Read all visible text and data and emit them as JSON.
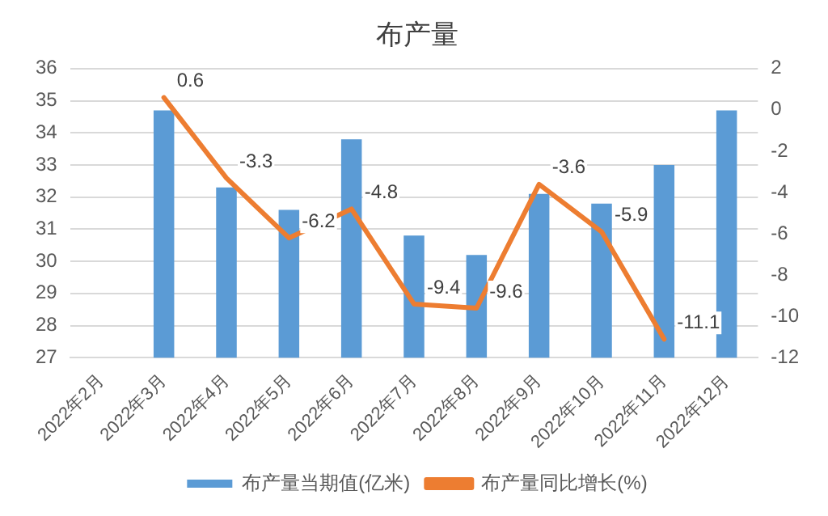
{
  "chart_data": {
    "type": "bar",
    "title": "布产量",
    "categories": [
      "2022年2月",
      "2022年3月",
      "2022年4月",
      "2022年5月",
      "2022年6月",
      "2022年7月",
      "2022年8月",
      "2022年9月",
      "2022年10月",
      "2022年11月",
      "2022年12月"
    ],
    "series": [
      {
        "name": "布产量当期值(亿米)",
        "color": "#5b9bd5",
        "values": [
          null,
          34.7,
          32.3,
          31.6,
          33.8,
          30.8,
          30.2,
          32.1,
          31.8,
          33.0,
          34.7
        ]
      },
      {
        "name": "布产量同比增长(%)",
        "type": "line",
        "axis": "y2",
        "color": "#ed7d31",
        "values": [
          null,
          0.6,
          -3.3,
          -6.2,
          -4.8,
          -9.4,
          -9.6,
          -3.6,
          -5.9,
          -11.1,
          null
        ],
        "value_labels": [
          null,
          "0.6",
          "-3.3",
          "-6.2",
          "-4.8",
          "-9.4",
          "-9.6",
          "-3.6",
          "-5.9",
          "-11.1",
          null
        ]
      }
    ],
    "ylim": [
      27,
      36
    ],
    "yticks": [
      27,
      28,
      29,
      30,
      31,
      32,
      33,
      34,
      35,
      36
    ],
    "y2lim": [
      -12,
      2
    ],
    "y2ticks": [
      -12,
      -10,
      -8,
      -6,
      -4,
      -2,
      0,
      2
    ],
    "grid": "y",
    "legend": "bottom",
    "marker": "none"
  }
}
